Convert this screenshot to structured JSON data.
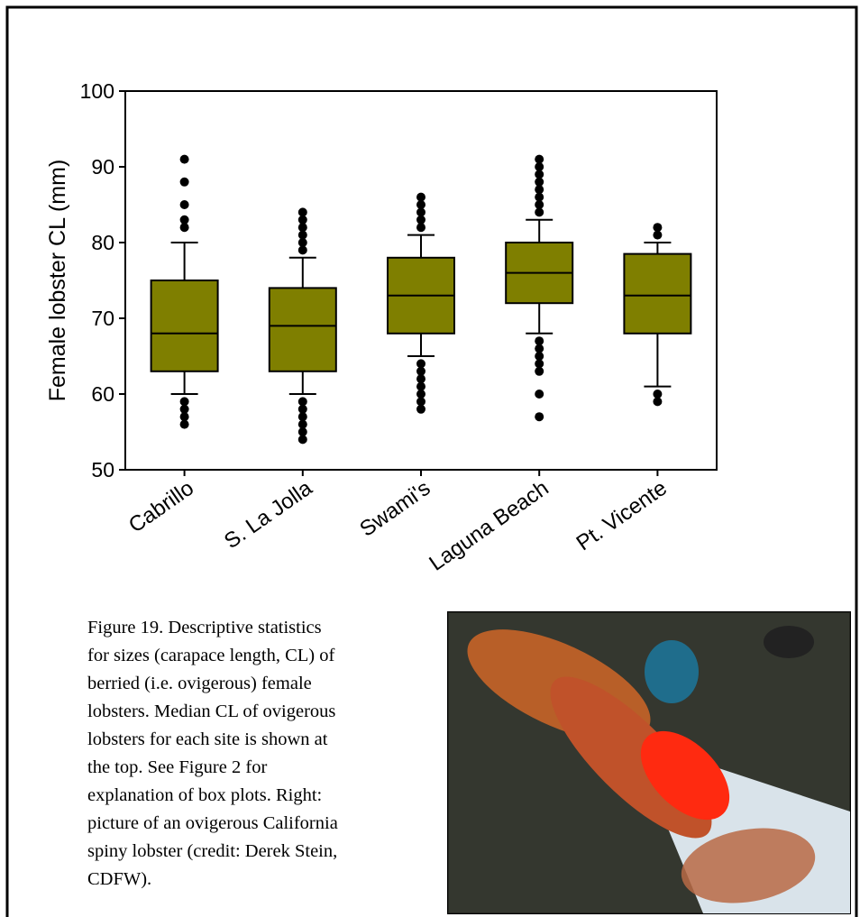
{
  "chart_data": {
    "type": "box",
    "y_label": "Female lobster CL (mm)",
    "categories": [
      "Cabrillo",
      "S. La Jolla",
      "Swami's",
      "Laguna Beach",
      "Pt. Vicente"
    ],
    "color": "#7f7f00",
    "boxes": [
      {
        "whislo": 60,
        "q1": 63,
        "med": 68,
        "q3": 75,
        "whishi": 80,
        "fliers": [
          56,
          57,
          58,
          59,
          82,
          83,
          85,
          88,
          91
        ]
      },
      {
        "whislo": 60,
        "q1": 63,
        "med": 69,
        "q3": 74,
        "whishi": 78,
        "fliers": [
          54,
          55,
          56,
          57,
          58,
          59,
          79,
          80,
          81,
          82,
          83,
          84
        ]
      },
      {
        "whislo": 65,
        "q1": 68,
        "med": 73,
        "q3": 78,
        "whishi": 81,
        "fliers": [
          58,
          59,
          60,
          61,
          62,
          63,
          64,
          82,
          83,
          84,
          85,
          86
        ]
      },
      {
        "whislo": 68,
        "q1": 72,
        "med": 76,
        "q3": 80,
        "whishi": 83,
        "fliers": [
          57,
          60,
          63,
          64,
          65,
          66,
          67,
          84,
          85,
          86,
          87,
          88,
          89,
          90,
          91
        ]
      },
      {
        "whislo": 61,
        "q1": 68,
        "med": 73,
        "q3": 78.5,
        "whishi": 80,
        "fliers": [
          59,
          60,
          81,
          82
        ]
      }
    ],
    "ylim": [
      50,
      100
    ],
    "yticks": [
      50,
      60,
      70,
      80,
      90,
      100
    ]
  },
  "caption": {
    "lines": [
      "Figure 19. Descriptive statistics",
      "for sizes (carapace length, CL) of",
      "berried (i.e. ovigerous) female",
      "lobsters. Median CL of ovigerous",
      "lobsters for each site is shown at",
      "the top.  See Figure 2 for",
      "explanation of box plots.  Right:",
      "picture of an ovigerous California",
      "spiny lobster (credit: Derek Stein,",
      "CDFW)."
    ]
  }
}
